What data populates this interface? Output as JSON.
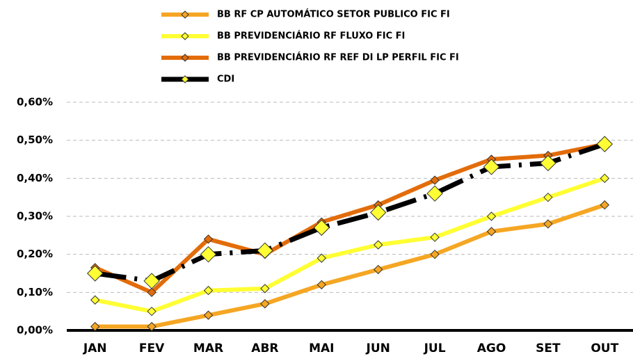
{
  "chart_data": {
    "type": "line",
    "categories": [
      "JAN",
      "FEV",
      "MAR",
      "ABR",
      "MAI",
      "JUN",
      "JUL",
      "AGO",
      "SET",
      "OUT"
    ],
    "series": [
      {
        "name": "BB RF CP AUTOMÁTICO SETOR PUBLICO FIC FI",
        "color": "#f5a623",
        "marker_size": 6,
        "values": [
          0.01,
          0.01,
          0.04,
          0.07,
          0.12,
          0.16,
          0.2,
          0.26,
          0.28,
          0.33
        ]
      },
      {
        "name": "BB PREVIDENCIÁRIO RF FLUXO FIC FI",
        "color": "#ffff33",
        "marker_size": 6,
        "values": [
          0.08,
          0.05,
          0.105,
          0.11,
          0.19,
          0.225,
          0.245,
          0.3,
          0.35,
          0.4
        ]
      },
      {
        "name": "BB PREVIDENCIÁRIO RF REF DI LP PERFIL FIC FI",
        "color": "#e36c0a",
        "marker_size": 6,
        "values": [
          0.165,
          0.1,
          0.24,
          0.2,
          0.285,
          0.33,
          0.395,
          0.45,
          0.46,
          0.49
        ]
      },
      {
        "name": "CDI",
        "color": "#000000",
        "marker_color": "#ffff33",
        "marker_size": 11,
        "dashed": true,
        "values": [
          0.15,
          0.13,
          0.2,
          0.21,
          0.27,
          0.31,
          0.36,
          0.43,
          0.44,
          0.49
        ]
      }
    ],
    "ylim": [
      0,
      0.6
    ],
    "yticks": [
      {
        "value": 0,
        "label": "0,00%"
      },
      {
        "value": 0.1,
        "label": "0,10%"
      },
      {
        "value": 0.2,
        "label": "0,20%"
      },
      {
        "value": 0.3,
        "label": "0,30%"
      },
      {
        "value": 0.4,
        "label": "0,40%"
      },
      {
        "value": 0.5,
        "label": "0,50%"
      },
      {
        "value": 0.6,
        "label": "0,60%"
      }
    ],
    "grid": true,
    "legend": "top"
  }
}
